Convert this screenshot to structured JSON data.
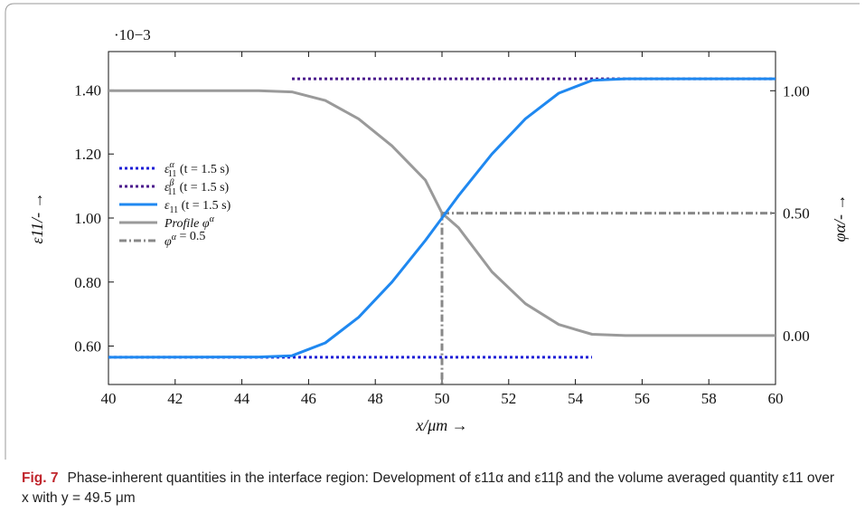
{
  "chart_data": {
    "type": "line",
    "x_label": "x/μm →",
    "y_left_label": "ε11/- →",
    "y_right_label": "φα/- →",
    "y_left_exponent": "·10−3",
    "xlim": [
      40,
      60
    ],
    "ylim_left": [
      0.48,
      1.52
    ],
    "ylim_right": [
      -0.2,
      1.16
    ],
    "x_ticks": [
      "40",
      "42",
      "44",
      "46",
      "48",
      "50",
      "52",
      "54",
      "56",
      "58",
      "60"
    ],
    "y_left_ticks": [
      "0.60",
      "0.80",
      "1.00",
      "1.20",
      "1.40"
    ],
    "y_right_ticks": [
      "0.00",
      "0.50",
      "1.00"
    ],
    "legend_position": "left",
    "series": [
      {
        "name": "ε11α (t = 1.5 s)",
        "axis": "left",
        "color": "#1f1fd6",
        "style": "dotted",
        "x": [
          40,
          54.5
        ],
        "y": [
          0.565,
          0.565
        ]
      },
      {
        "name": "ε11β (t = 1.5 s)",
        "axis": "left",
        "color": "#4b1a8c",
        "style": "dotted",
        "x": [
          45.5,
          60
        ],
        "y": [
          1.435,
          1.435
        ]
      },
      {
        "name": "ε11 (t = 1.5 s)",
        "axis": "left",
        "color": "#1f88f0",
        "style": "solid",
        "x": [
          40,
          44.5,
          45.5,
          46.5,
          47.5,
          48.5,
          49.5,
          50,
          50.5,
          51.5,
          52.5,
          53.5,
          54.5,
          55.5,
          60
        ],
        "y": [
          0.565,
          0.566,
          0.57,
          0.61,
          0.69,
          0.8,
          0.93,
          1.0,
          1.07,
          1.2,
          1.31,
          1.39,
          1.43,
          1.435,
          1.435
        ]
      },
      {
        "name": "Profile φα",
        "axis": "right",
        "color": "#9a9a9a",
        "style": "solid",
        "x": [
          40,
          44.5,
          45.5,
          46.5,
          47.5,
          48.5,
          49.5,
          50,
          50.5,
          51.5,
          52.5,
          53.5,
          54.5,
          55.5,
          60
        ],
        "y": [
          1.0,
          1.0,
          0.995,
          0.96,
          0.885,
          0.775,
          0.635,
          0.5,
          0.44,
          0.26,
          0.13,
          0.045,
          0.005,
          0.0,
          0.0
        ]
      },
      {
        "name": "φα = 0.5",
        "axis": "right",
        "color": "#888888",
        "style": "dashdot",
        "x": [
          50,
          60
        ],
        "y": [
          0.5,
          0.5
        ],
        "vertical_at_x": 50
      }
    ]
  },
  "legend": {
    "items": [
      {
        "base": "ε",
        "sub": "11",
        "sup": "α",
        "rest": "(t = 1.5 s)"
      },
      {
        "base": "ε",
        "sub": "11",
        "sup": "β",
        "rest": "(t = 1.5 s)"
      },
      {
        "base": "ε",
        "sub": "11",
        "sup": "",
        "rest": "(t = 1.5 s)"
      },
      {
        "base": "Profile φ",
        "sub": "",
        "sup": "α",
        "rest": ""
      },
      {
        "base": "φ",
        "sub": "",
        "sup": "α",
        "rest": " = 0.5"
      }
    ]
  },
  "caption": {
    "label": "Fig. 7",
    "text": "Phase-inherent quantities in the interface region: Development of ε11α and ε11β and the volume averaged quantity ε11 over x with y = 49.5 μm"
  }
}
